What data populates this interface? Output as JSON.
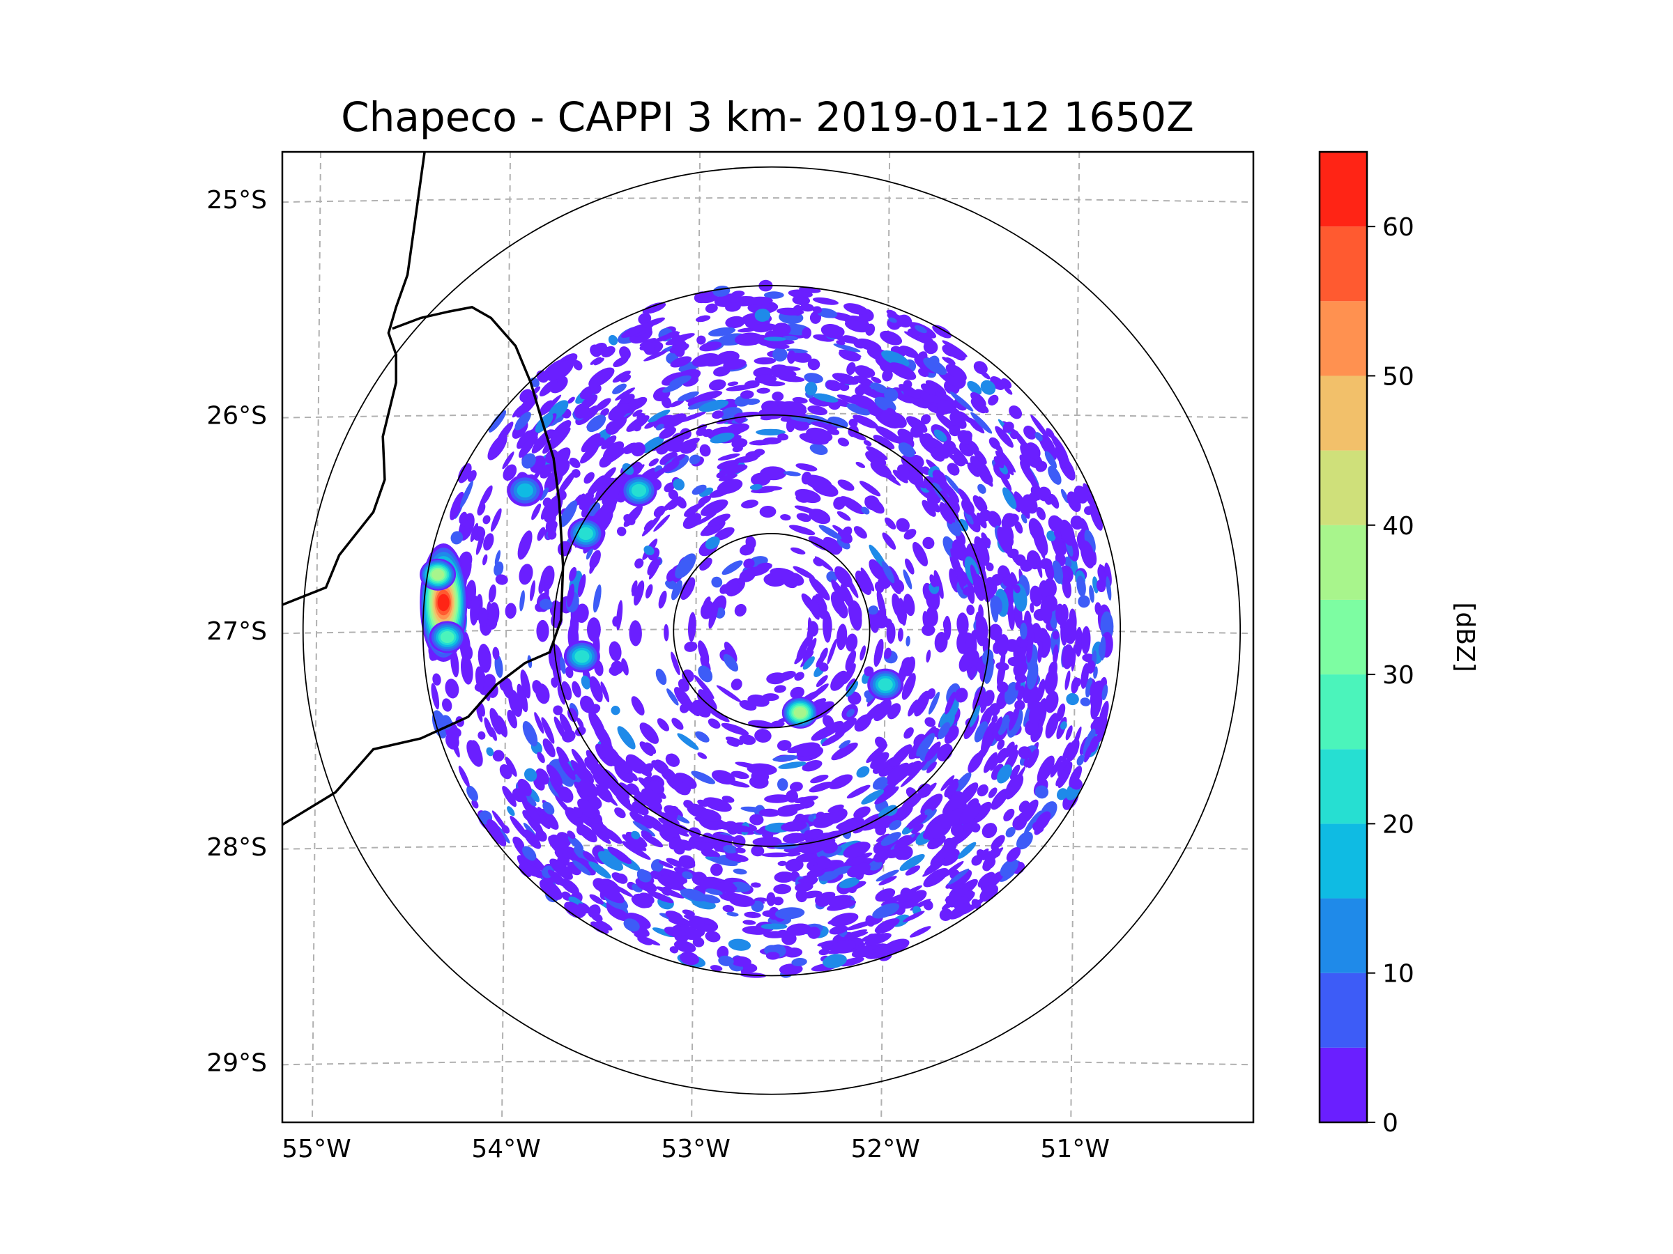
{
  "title": "Chapeco - CAPPI 3 km- 2019-01-12 1650Z",
  "map": {
    "lon_range": [
      -55.18,
      -50.06
    ],
    "lat_range": [
      -29.28,
      -24.78
    ],
    "lon_ticks": [
      -55,
      -54,
      -53,
      -52,
      -51
    ],
    "lat_ticks": [
      -25,
      -26,
      -27,
      -28,
      -29
    ],
    "lon_tick_labels": [
      "55°W",
      "54°W",
      "53°W",
      "52°W",
      "51°W"
    ],
    "lat_tick_labels": [
      "25°S",
      "26°S",
      "27°S",
      "28°S",
      "29°S"
    ],
    "radar_center": {
      "lon": -52.6,
      "lat": -27.0
    },
    "range_rings_deg_lat": [
      0.45,
      1.0,
      1.6,
      2.15
    ],
    "echo_max_range_deg_lat": 1.6
  },
  "reflectivity_cells": [
    {
      "lon": -54.33,
      "lat": -26.87,
      "dbz": 60
    },
    {
      "lon": -54.36,
      "lat": -26.74,
      "dbz": 35
    },
    {
      "lon": -54.31,
      "lat": -27.03,
      "dbz": 28
    },
    {
      "lon": -53.9,
      "lat": -26.35,
      "dbz": 18
    },
    {
      "lon": -53.58,
      "lat": -26.55,
      "dbz": 20
    },
    {
      "lon": -53.6,
      "lat": -27.12,
      "dbz": 24
    },
    {
      "lon": -52.45,
      "lat": -27.38,
      "dbz": 35
    },
    {
      "lon": -53.3,
      "lat": -26.35,
      "dbz": 22
    },
    {
      "lon": -52.0,
      "lat": -27.25,
      "dbz": 20
    }
  ],
  "colorbar": {
    "label": "[dBZ]",
    "levels": [
      0,
      5,
      10,
      15,
      20,
      25,
      30,
      35,
      40,
      45,
      50,
      55,
      60,
      65
    ],
    "tick_values": [
      0,
      10,
      20,
      30,
      40,
      50,
      60
    ],
    "tick_labels": [
      "0",
      "10",
      "20",
      "30",
      "40",
      "50",
      "60"
    ],
    "colors": [
      "#6a1fff",
      "#3d5cf7",
      "#1f8ae9",
      "#0fbbe3",
      "#26dfd2",
      "#4bf4bb",
      "#7dfda2",
      "#a8f58c",
      "#cfe07a",
      "#f2c06a",
      "#ff9150",
      "#ff5a30",
      "#ff2415"
    ]
  }
}
